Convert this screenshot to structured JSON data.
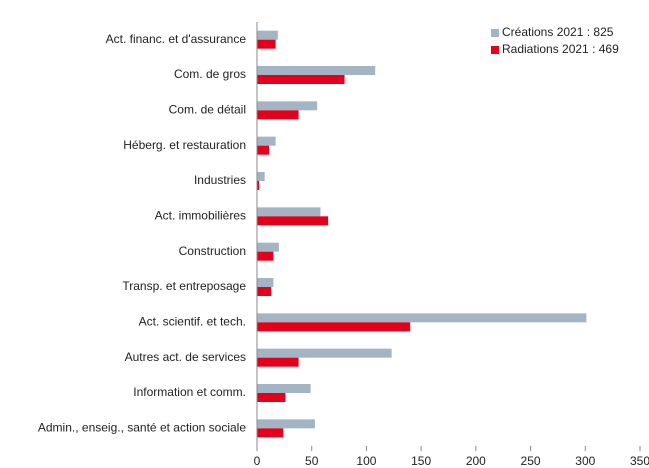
{
  "chart_data": {
    "type": "bar",
    "orientation": "horizontal",
    "categories": [
      "Act. financ. et d'assurance",
      "Com. de gros",
      "Com. de détail",
      "Héberg. et restauration",
      "Industries",
      "Act. immobilières",
      "Construction",
      "Transp. et entreposage",
      "Act. scientif. et tech.",
      "Autres act. de services",
      "Information et comm.",
      "Admin., enseig., santé et action sociale"
    ],
    "series": [
      {
        "name": "Créations 2021 : 825",
        "color": "#a3b4c4",
        "values": [
          19,
          108,
          55,
          17,
          7,
          58,
          20,
          15,
          301,
          123,
          49,
          53
        ]
      },
      {
        "name": "Radiations 2021 : 469",
        "color": "#e2001a",
        "values": [
          17,
          80,
          38,
          11,
          2,
          65,
          15,
          13,
          140,
          38,
          26,
          24
        ]
      }
    ],
    "xlim": [
      0,
      350
    ],
    "xticks": [
      0,
      50,
      100,
      150,
      200,
      250,
      300,
      350
    ],
    "legend": "top-right"
  }
}
